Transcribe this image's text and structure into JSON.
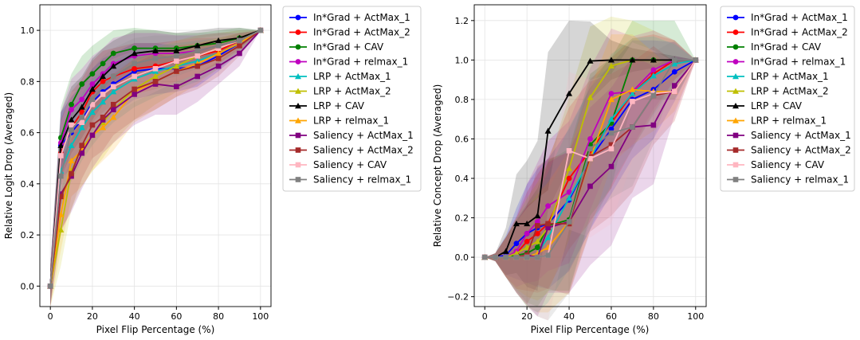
{
  "chart_data": [
    {
      "type": "line",
      "title": "",
      "xlabel": "Pixel Flip Percentage (%)",
      "ylabel": "Relative Logit Drop (Averaged)",
      "xlim": [
        -5,
        105
      ],
      "ylim": [
        -0.08,
        1.1
      ],
      "xticks": [
        0,
        20,
        40,
        60,
        80,
        100
      ],
      "yticks": [
        0.0,
        0.2,
        0.4,
        0.6,
        0.8,
        1.0
      ],
      "xtick_labels": [
        "0",
        "20",
        "40",
        "60",
        "80",
        "100"
      ],
      "ytick_labels": [
        "0.0",
        "0.2",
        "0.4",
        "0.6",
        "0.8",
        "1.0"
      ],
      "grid": true,
      "legend_position": "outside-right",
      "x": [
        0,
        5,
        10,
        15,
        20,
        25,
        30,
        40,
        50,
        60,
        70,
        80,
        90,
        100
      ],
      "series": [
        {
          "name": "In*Grad + ActMax_1",
          "color": "#0000ff",
          "marker": "circle",
          "values": [
            0.0,
            0.55,
            0.6,
            0.65,
            0.72,
            0.76,
            0.79,
            0.84,
            0.85,
            0.85,
            0.86,
            0.9,
            0.95,
            1.0
          ],
          "band": [
            0.08,
            0.13,
            0.14,
            0.14,
            0.13,
            0.13,
            0.12,
            0.11,
            0.1,
            0.09,
            0.08,
            0.06,
            0.04,
            0.0
          ]
        },
        {
          "name": "In*Grad + ActMax_2",
          "color": "#ff0000",
          "marker": "circle",
          "values": [
            0.0,
            0.52,
            0.62,
            0.68,
            0.76,
            0.8,
            0.82,
            0.85,
            0.86,
            0.88,
            0.9,
            0.92,
            0.96,
            1.0
          ],
          "band": [
            0.08,
            0.13,
            0.14,
            0.13,
            0.12,
            0.12,
            0.11,
            0.1,
            0.09,
            0.08,
            0.07,
            0.05,
            0.03,
            0.0
          ]
        },
        {
          "name": "In*Grad + CAV",
          "color": "#008000",
          "marker": "circle",
          "values": [
            0.0,
            0.58,
            0.71,
            0.79,
            0.83,
            0.87,
            0.91,
            0.93,
            0.93,
            0.93,
            0.94,
            0.95,
            0.97,
            1.0
          ],
          "band": [
            0.08,
            0.12,
            0.12,
            0.11,
            0.11,
            0.1,
            0.09,
            0.08,
            0.07,
            0.06,
            0.05,
            0.05,
            0.04,
            0.0
          ]
        },
        {
          "name": "In*Grad + relmax_1",
          "color": "#bf00bf",
          "marker": "circle",
          "values": [
            0.0,
            0.56,
            0.69,
            0.73,
            0.79,
            0.83,
            0.87,
            0.9,
            0.91,
            0.91,
            0.92,
            0.94,
            0.96,
            1.0
          ],
          "band": [
            0.08,
            0.12,
            0.12,
            0.12,
            0.11,
            0.1,
            0.1,
            0.09,
            0.08,
            0.07,
            0.06,
            0.05,
            0.03,
            0.0
          ]
        },
        {
          "name": "LRP + ActMax_1",
          "color": "#00bfbf",
          "marker": "triangle",
          "values": [
            0.0,
            0.45,
            0.55,
            0.62,
            0.68,
            0.72,
            0.76,
            0.81,
            0.84,
            0.86,
            0.88,
            0.91,
            0.95,
            1.0
          ],
          "band": [
            0.08,
            0.14,
            0.14,
            0.13,
            0.13,
            0.12,
            0.12,
            0.11,
            0.1,
            0.09,
            0.08,
            0.06,
            0.04,
            0.0
          ]
        },
        {
          "name": "LRP + ActMax_2",
          "color": "#bfbf00",
          "marker": "triangle",
          "values": [
            0.0,
            0.22,
            0.45,
            0.54,
            0.59,
            0.64,
            0.69,
            0.77,
            0.82,
            0.86,
            0.9,
            0.93,
            0.96,
            1.0
          ],
          "band": [
            0.08,
            0.14,
            0.15,
            0.15,
            0.14,
            0.14,
            0.13,
            0.12,
            0.11,
            0.1,
            0.08,
            0.06,
            0.04,
            0.0
          ]
        },
        {
          "name": "LRP + CAV",
          "color": "#000000",
          "marker": "triangle",
          "values": [
            0.0,
            0.55,
            0.65,
            0.7,
            0.77,
            0.82,
            0.86,
            0.91,
            0.92,
            0.92,
            0.94,
            0.96,
            0.97,
            1.0
          ],
          "band": [
            0.08,
            0.13,
            0.13,
            0.12,
            0.12,
            0.11,
            0.1,
            0.09,
            0.08,
            0.07,
            0.06,
            0.05,
            0.04,
            0.0
          ]
        },
        {
          "name": "LRP + relmax_1",
          "color": "#ffa500",
          "marker": "triangle",
          "values": [
            0.0,
            0.28,
            0.49,
            0.53,
            0.59,
            0.62,
            0.66,
            0.76,
            0.8,
            0.84,
            0.87,
            0.91,
            0.95,
            1.0
          ],
          "band": [
            0.08,
            0.14,
            0.14,
            0.14,
            0.14,
            0.13,
            0.13,
            0.12,
            0.11,
            0.1,
            0.08,
            0.06,
            0.04,
            0.0
          ]
        },
        {
          "name": "Saliency + ActMax_1",
          "color": "#800080",
          "marker": "square",
          "values": [
            0.0,
            0.36,
            0.43,
            0.52,
            0.59,
            0.65,
            0.69,
            0.75,
            0.79,
            0.78,
            0.82,
            0.86,
            0.91,
            1.0
          ],
          "band": [
            0.08,
            0.14,
            0.14,
            0.14,
            0.13,
            0.13,
            0.13,
            0.12,
            0.12,
            0.11,
            0.1,
            0.07,
            0.05,
            0.0
          ]
        },
        {
          "name": "Saliency + ActMax_2",
          "color": "#a52a2a",
          "marker": "square",
          "values": [
            0.0,
            0.35,
            0.44,
            0.55,
            0.63,
            0.66,
            0.71,
            0.77,
            0.8,
            0.84,
            0.86,
            0.89,
            0.94,
            1.0
          ],
          "band": [
            0.08,
            0.14,
            0.14,
            0.13,
            0.13,
            0.13,
            0.12,
            0.12,
            0.11,
            0.1,
            0.09,
            0.07,
            0.04,
            0.0
          ]
        },
        {
          "name": "Saliency + CAV",
          "color": "#ffb6c1",
          "marker": "square",
          "values": [
            0.0,
            0.51,
            0.63,
            0.64,
            0.71,
            0.75,
            0.78,
            0.82,
            0.85,
            0.88,
            0.9,
            0.93,
            0.96,
            1.0
          ],
          "band": [
            0.08,
            0.13,
            0.13,
            0.13,
            0.12,
            0.12,
            0.11,
            0.1,
            0.09,
            0.08,
            0.07,
            0.05,
            0.03,
            0.0
          ]
        },
        {
          "name": "Saliency + relmax_1",
          "color": "#808080",
          "marker": "square",
          "values": [
            0.0,
            0.43,
            0.61,
            0.66,
            0.73,
            0.78,
            0.82,
            0.87,
            0.89,
            0.9,
            0.92,
            0.94,
            0.96,
            1.0
          ],
          "band": [
            0.08,
            0.13,
            0.13,
            0.13,
            0.12,
            0.12,
            0.11,
            0.1,
            0.09,
            0.08,
            0.07,
            0.05,
            0.04,
            0.0
          ]
        }
      ]
    },
    {
      "type": "line",
      "title": "",
      "xlabel": "Pixel Flip Percentage (%)",
      "ylabel": "Relative Concept Drop (Averaged)",
      "xlim": [
        -5,
        105
      ],
      "ylim": [
        -0.25,
        1.28
      ],
      "xticks": [
        0,
        20,
        40,
        60,
        80,
        100
      ],
      "yticks": [
        -0.2,
        0.0,
        0.2,
        0.4,
        0.6,
        0.8,
        1.0,
        1.2
      ],
      "xtick_labels": [
        "0",
        "20",
        "40",
        "60",
        "80",
        "100"
      ],
      "ytick_labels": [
        "−0.2",
        "0.0",
        "0.2",
        "0.4",
        "0.6",
        "0.8",
        "1.0",
        "1.2"
      ],
      "grid": true,
      "legend_position": "outside-right",
      "x": [
        0,
        5,
        10,
        15,
        20,
        25,
        30,
        40,
        50,
        60,
        70,
        80,
        90,
        100
      ],
      "series": [
        {
          "name": "In*Grad + ActMax_1",
          "color": "#0000ff",
          "marker": "circle",
          "values": [
            0.0,
            0.0,
            0.01,
            0.07,
            0.12,
            0.15,
            0.17,
            0.29,
            0.5,
            0.65,
            0.8,
            0.85,
            0.94,
            1.0
          ],
          "band": [
            0.0,
            0.02,
            0.1,
            0.18,
            0.25,
            0.3,
            0.33,
            0.36,
            0.36,
            0.33,
            0.3,
            0.25,
            0.15,
            0.0
          ]
        },
        {
          "name": "In*Grad + ActMax_2",
          "color": "#ff0000",
          "marker": "circle",
          "values": [
            0.0,
            0.0,
            0.0,
            0.02,
            0.08,
            0.12,
            0.17,
            0.4,
            0.54,
            0.68,
            0.83,
            0.93,
            1.0,
            1.0
          ],
          "band": [
            0.0,
            0.02,
            0.1,
            0.18,
            0.25,
            0.3,
            0.33,
            0.36,
            0.36,
            0.33,
            0.28,
            0.2,
            0.1,
            0.0
          ]
        },
        {
          "name": "In*Grad + CAV",
          "color": "#008000",
          "marker": "circle",
          "values": [
            0.0,
            0.0,
            0.0,
            0.01,
            0.02,
            0.05,
            0.16,
            0.19,
            0.57,
            0.68,
            1.0,
            1.0,
            1.0,
            1.0
          ],
          "band": [
            0.0,
            0.02,
            0.1,
            0.18,
            0.25,
            0.3,
            0.33,
            0.36,
            0.36,
            0.33,
            0.2,
            0.2,
            0.2,
            0.0
          ]
        },
        {
          "name": "In*Grad + relmax_1",
          "color": "#bf00bf",
          "marker": "circle",
          "values": [
            0.0,
            0.0,
            0.0,
            0.03,
            0.12,
            0.18,
            0.26,
            0.33,
            0.6,
            0.83,
            0.84,
            0.95,
            1.0,
            1.0
          ],
          "band": [
            0.0,
            0.02,
            0.1,
            0.18,
            0.25,
            0.3,
            0.33,
            0.36,
            0.36,
            0.33,
            0.28,
            0.2,
            0.1,
            0.0
          ]
        },
        {
          "name": "LRP + ActMax_1",
          "color": "#00bfbf",
          "marker": "triangle",
          "values": [
            0.0,
            0.0,
            0.0,
            0.0,
            0.0,
            0.02,
            0.1,
            0.3,
            0.5,
            0.7,
            0.83,
            0.92,
            0.98,
            1.0
          ],
          "band": [
            0.0,
            0.02,
            0.1,
            0.18,
            0.25,
            0.3,
            0.33,
            0.36,
            0.36,
            0.33,
            0.28,
            0.2,
            0.1,
            0.0
          ]
        },
        {
          "name": "LRP + ActMax_2",
          "color": "#bfbf00",
          "marker": "triangle",
          "values": [
            0.0,
            0.0,
            0.0,
            0.02,
            0.05,
            0.08,
            0.15,
            0.45,
            0.81,
            0.97,
            1.0,
            1.0,
            1.0,
            1.0
          ],
          "band": [
            0.0,
            0.02,
            0.1,
            0.18,
            0.25,
            0.3,
            0.33,
            0.36,
            0.36,
            0.25,
            0.2,
            0.15,
            0.1,
            0.0
          ]
        },
        {
          "name": "LRP + CAV",
          "color": "#000000",
          "marker": "triangle",
          "values": [
            0.0,
            0.0,
            0.03,
            0.17,
            0.17,
            0.21,
            0.64,
            0.83,
            0.995,
            1.0,
            1.0,
            1.0,
            1.0,
            1.0
          ],
          "band": [
            0.0,
            0.02,
            0.12,
            0.25,
            0.32,
            0.38,
            0.4,
            0.37,
            0.2,
            0.1,
            0.06,
            0.04,
            0.02,
            0.0
          ]
        },
        {
          "name": "LRP + relmax_1",
          "color": "#ffa500",
          "marker": "triangle",
          "values": [
            0.0,
            0.0,
            0.0,
            0.0,
            0.0,
            0.02,
            0.05,
            0.18,
            0.5,
            0.8,
            0.85,
            0.84,
            0.84,
            1.0
          ],
          "band": [
            0.0,
            0.02,
            0.1,
            0.18,
            0.25,
            0.3,
            0.33,
            0.36,
            0.36,
            0.33,
            0.28,
            0.2,
            0.1,
            0.0
          ]
        },
        {
          "name": "Saliency + ActMax_1",
          "color": "#800080",
          "marker": "square",
          "values": [
            0.0,
            0.0,
            0.0,
            0.0,
            0.01,
            0.0,
            0.15,
            0.18,
            0.36,
            0.46,
            0.66,
            0.67,
            0.87,
            1.0
          ],
          "band": [
            0.0,
            0.02,
            0.1,
            0.18,
            0.25,
            0.3,
            0.33,
            0.36,
            0.4,
            0.4,
            0.36,
            0.3,
            0.15,
            0.0
          ]
        },
        {
          "name": "Saliency + ActMax_2",
          "color": "#a52a2a",
          "marker": "square",
          "values": [
            0.0,
            0.0,
            0.0,
            0.0,
            0.01,
            0.16,
            0.17,
            0.17,
            0.51,
            0.57,
            0.66,
            0.82,
            0.84,
            1.0
          ],
          "band": [
            0.0,
            0.02,
            0.1,
            0.18,
            0.25,
            0.3,
            0.33,
            0.36,
            0.38,
            0.36,
            0.33,
            0.25,
            0.15,
            0.0
          ]
        },
        {
          "name": "Saliency + CAV",
          "color": "#ffb6c1",
          "marker": "square",
          "values": [
            0.0,
            0.0,
            0.0,
            0.0,
            0.0,
            0.0,
            0.01,
            0.54,
            0.5,
            0.55,
            0.79,
            0.83,
            0.84,
            1.0
          ],
          "band": [
            0.0,
            0.02,
            0.1,
            0.18,
            0.25,
            0.3,
            0.33,
            0.4,
            0.4,
            0.38,
            0.3,
            0.22,
            0.15,
            0.0
          ]
        },
        {
          "name": "Saliency + relmax_1",
          "color": "#808080",
          "marker": "square",
          "values": [
            0.0,
            0.0,
            0.0,
            0.0,
            0.0,
            0.0,
            0.01,
            0.18,
            0.55,
            0.63,
            0.66,
            0.82,
            1.0,
            1.0
          ],
          "band": [
            0.0,
            0.02,
            0.1,
            0.18,
            0.25,
            0.3,
            0.33,
            0.36,
            0.36,
            0.33,
            0.3,
            0.22,
            0.1,
            0.0
          ]
        }
      ]
    }
  ]
}
